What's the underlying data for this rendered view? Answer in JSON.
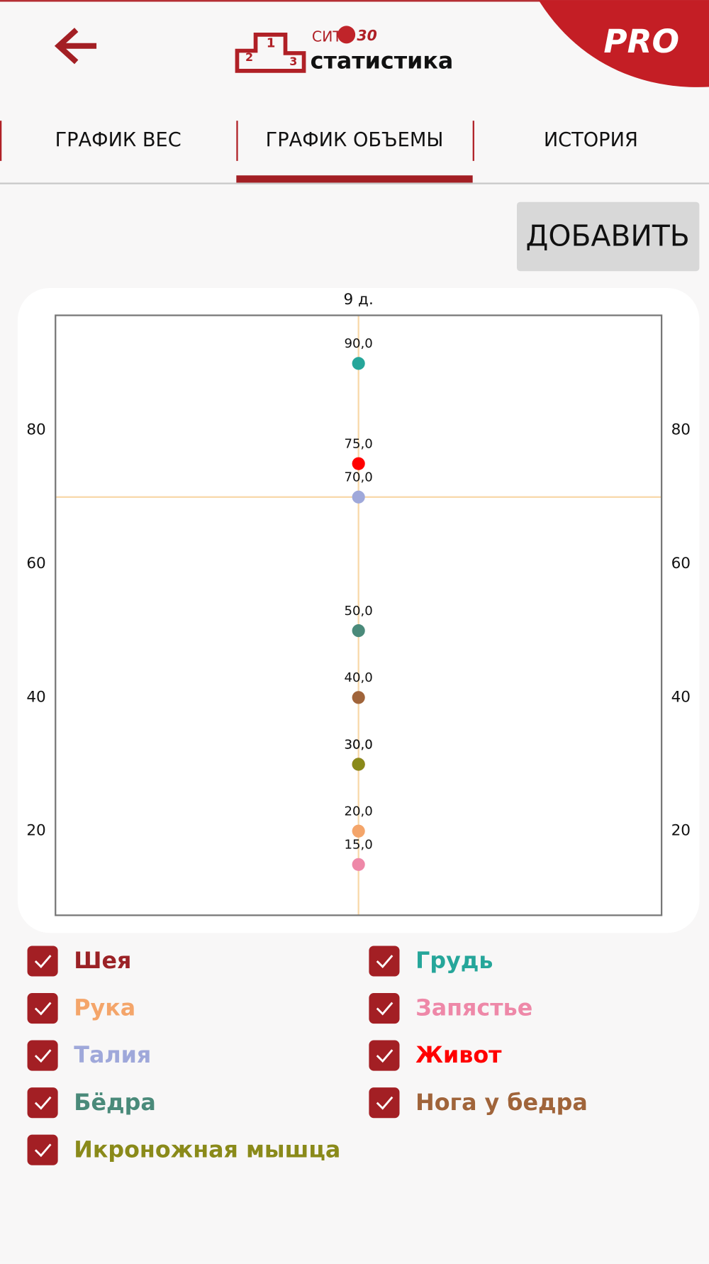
{
  "header": {
    "logo": {
      "podium": [
        "1",
        "2",
        "3"
      ],
      "brand": "СИТ",
      "brand_number": "30",
      "title": "статистика"
    },
    "badge": "PRO"
  },
  "tabs": {
    "items": [
      "ГРАФИК ВЕС",
      "ГРАФИК ОБЪЕМЫ",
      "ИСТОРИЯ"
    ],
    "active": 1
  },
  "add_button": "ДОБАВИТЬ",
  "chart_data": {
    "type": "scatter",
    "categories": [
      "9 д."
    ],
    "series": [
      {
        "name": "Шея",
        "color": "#9b2226",
        "values": [
          30
        ],
        "value_labels": [
          "30,0"
        ],
        "checked": true
      },
      {
        "name": "Грудь",
        "color": "#26a69a",
        "values": [
          90
        ],
        "value_labels": [
          "90,0"
        ],
        "checked": true
      },
      {
        "name": "Рука",
        "color": "#f4a56a",
        "values": [
          20
        ],
        "value_labels": [
          "20,0"
        ],
        "checked": true
      },
      {
        "name": "Запястье",
        "color": "#ee88a8",
        "values": [
          15
        ],
        "value_labels": [
          "15,0"
        ],
        "checked": true
      },
      {
        "name": "Талия",
        "color": "#9fa8da",
        "values": [
          70
        ],
        "value_labels": [
          "70,0"
        ],
        "checked": true
      },
      {
        "name": "Живот",
        "color": "#ff0000",
        "values": [
          75
        ],
        "value_labels": [
          "75,0"
        ],
        "checked": true
      },
      {
        "name": "Бёдра",
        "color": "#4a8a7a",
        "values": [
          50
        ],
        "value_labels": [
          "50,0"
        ],
        "checked": true
      },
      {
        "name": "Нога у бедра",
        "color": "#a0643a",
        "values": [
          40
        ],
        "value_labels": [
          "40,0"
        ],
        "checked": true
      },
      {
        "name": "Икроножная мышца",
        "color": "#8a8a1a",
        "values": [
          30
        ],
        "value_labels": [
          "30,0"
        ],
        "checked": true
      }
    ],
    "ylim": [
      7.4,
      97.2
    ],
    "yticks": [
      20,
      40,
      60,
      80
    ],
    "y2lim": [
      7.4,
      97.2
    ],
    "y2ticks": [
      20,
      40,
      60,
      80
    ],
    "crosshair": true,
    "selected": "Талия",
    "crosshair_color": "#f8d8a8"
  }
}
